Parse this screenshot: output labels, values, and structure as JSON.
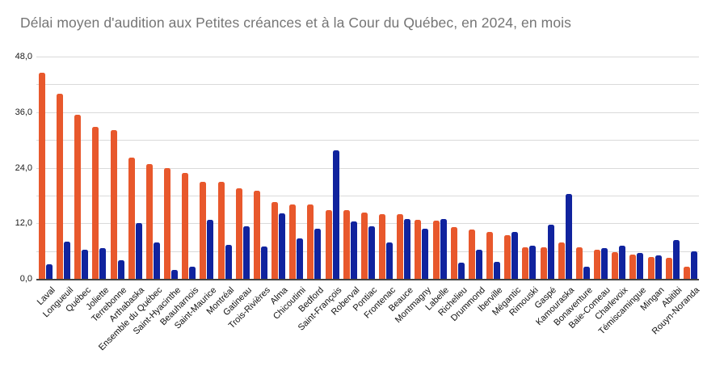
{
  "title": "Délai moyen d'audition aux Petites créances et à la Cour du Québec, en 2024, en mois",
  "colors": {
    "orange": "#E8582C",
    "blue": "#10239E",
    "gridline": "#DADADA",
    "axis_line": "#424242",
    "title_text": "#757575",
    "tick_text": "#1A1A1A"
  },
  "y_axis": {
    "tick_labels": [
      "48,0",
      "36,0",
      "24,0",
      "12,0",
      "0,0"
    ],
    "tick_values": [
      48,
      36,
      24,
      12,
      0
    ],
    "minor_step": 6,
    "max": 48
  },
  "chart_data": {
    "type": "bar",
    "title": "Délai moyen d'audition aux Petites créances et à la Cour du Québec, en 2024, en mois",
    "xlabel": "",
    "ylabel": "",
    "ylim": [
      0,
      48
    ],
    "grid": true,
    "legend_position": "none",
    "y_tick_format": "decimal-comma",
    "categories": [
      "Laval",
      "Longueuil",
      "Québec",
      "Joliette",
      "Terrebonne",
      "Arthabaska",
      "Ensemble du Québec",
      "Saint-Hyacinthe",
      "Beauharnois",
      "Saint-Maurice",
      "Montréal",
      "Gatineau",
      "Trois-Rivières",
      "Alma",
      "Chicoutimi",
      "Bedford",
      "Saint-François",
      "Roberval",
      "Pontiac",
      "Frontenac",
      "Beauce",
      "Montmagny",
      "Labelle",
      "Richelieu",
      "Drummond",
      "Iberville",
      "Mégantic",
      "Rimouski",
      "Gaspé",
      "Kamouraska",
      "Bonaventure",
      "Baie-Comeau",
      "Charlevoix",
      "Témiscamingue",
      "Mingan",
      "Abitibi",
      "Rouyn-Noranda"
    ],
    "series": [
      {
        "name": "Petites créances",
        "color": "#E8582C",
        "values": [
          44.5,
          39.9,
          35.5,
          32.8,
          32.2,
          26.1,
          24.8,
          24.0,
          22.9,
          20.9,
          20.9,
          19.6,
          19.1,
          16.5,
          16.1,
          16.0,
          14.9,
          14.8,
          14.3,
          13.9,
          14.0,
          12.7,
          12.6,
          11.1,
          10.7,
          10.2,
          9.5,
          6.8,
          6.8,
          7.9,
          6.8,
          6.3,
          5.8,
          5.3,
          4.7,
          4.5,
          2.6
        ]
      },
      {
        "name": "Cour du Québec",
        "color": "#10239E",
        "values": [
          3.2,
          8.1,
          6.3,
          6.6,
          4.1,
          12.0,
          7.9,
          1.9,
          2.6,
          12.8,
          7.4,
          11.4,
          7.0,
          14.2,
          8.8,
          10.9,
          27.8,
          12.4,
          11.4,
          7.8,
          12.9,
          10.8,
          13.0,
          3.5,
          6.3,
          3.6,
          10.2,
          7.2,
          11.7,
          18.4,
          2.7,
          6.7,
          7.1,
          5.6,
          5.1,
          8.4,
          6.0
        ]
      }
    ]
  }
}
